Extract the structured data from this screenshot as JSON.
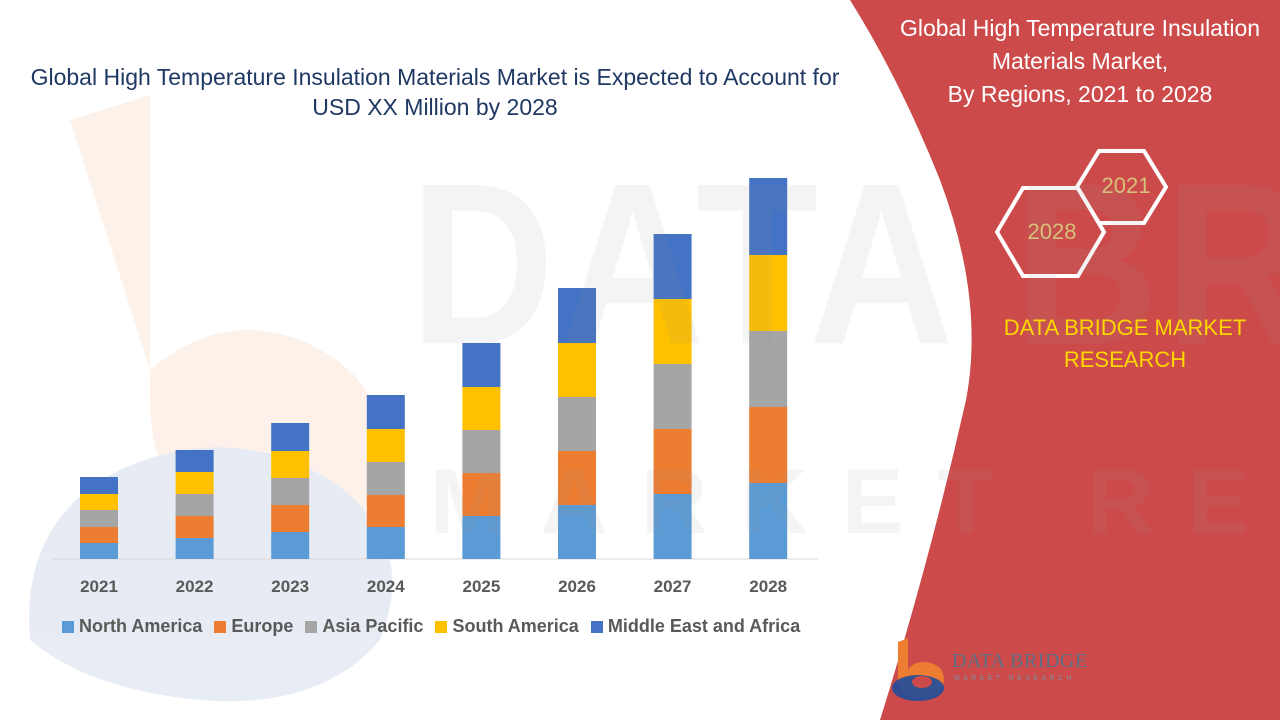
{
  "header": {
    "title": "Global High Temperature Insulation Materials Market is Expected to Account for USD XX Million by 2028"
  },
  "panel": {
    "title_line1": "Global High Temperature Insulation",
    "title_line2": "Materials Market,",
    "title_line3": "By Regions, 2021 to 2028",
    "hex_top": "2021",
    "hex_bottom": "2028",
    "brand_line1": "DATA BRIDGE MARKET",
    "brand_line2": "RESEARCH",
    "bg_color": "#cc4b4a"
  },
  "logo": {
    "name": "DATA BRIDGE",
    "tagline": "MARKET RESEARCH",
    "icon": "data-bridge-logo-icon"
  },
  "watermark": {
    "line1": "DATA BRIDGE",
    "line2": "MARKET RESEARCH"
  },
  "chart_data": {
    "type": "bar",
    "stacked": true,
    "categories": [
      "2021",
      "2022",
      "2023",
      "2024",
      "2025",
      "2026",
      "2027",
      "2028"
    ],
    "ylim": [
      0,
      390
    ],
    "grid": false,
    "legend": "bottom",
    "series": [
      {
        "name": "North America",
        "color": "#5b9bd5",
        "values": [
          16,
          21,
          27,
          32,
          43,
          54,
          65,
          76
        ]
      },
      {
        "name": "Europe",
        "color": "#ed7d31",
        "values": [
          16,
          22,
          27,
          32,
          43,
          54,
          65,
          76
        ]
      },
      {
        "name": "Asia Pacific",
        "color": "#a5a5a5",
        "values": [
          17,
          22,
          27,
          33,
          43,
          54,
          65,
          76
        ]
      },
      {
        "name": "South America",
        "color": "#ffc000",
        "values": [
          16,
          22,
          27,
          33,
          43,
          54,
          65,
          76
        ]
      },
      {
        "name": "Middle East and Africa",
        "color": "#4472c4",
        "values": [
          17,
          22,
          28,
          34,
          44,
          55,
          65,
          77
        ]
      }
    ]
  }
}
